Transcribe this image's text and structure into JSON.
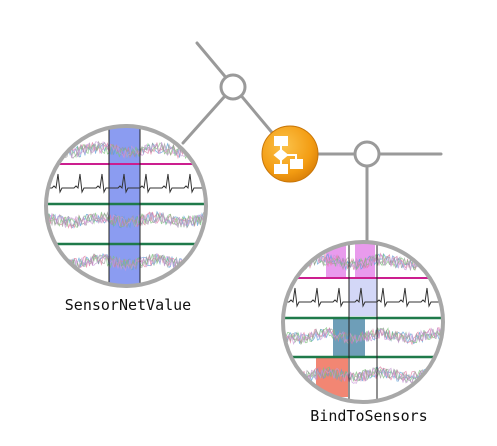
{
  "nodes": {
    "left": {
      "label": "SensorNetValue",
      "icon": "signal-panel-highlight-column"
    },
    "right": {
      "label": "BindToSensors",
      "icon": "signal-panel-highlight-multiple"
    }
  },
  "center_icon": {
    "name": "flowchart-icon",
    "color": "#f39c12"
  },
  "colors": {
    "line": "#9a9a9a",
    "ring": "#a8a8a8",
    "magenta": "#cc1e8f",
    "green": "#1f7a4a",
    "blue_highlight": "#6e83ee",
    "violet_highlight": "#e070e6",
    "teal_highlight": "#4a86a6",
    "red_highlight": "#f0715a"
  }
}
